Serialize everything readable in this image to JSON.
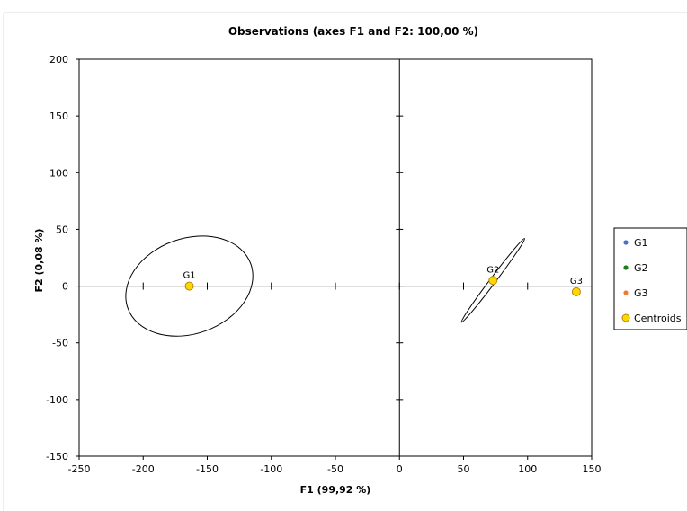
{
  "chart_data": {
    "type": "scatter",
    "title": "Observations (axes F1 and F2: 100,00 %)",
    "xlabel": "F1 (99,92 %)",
    "ylabel": "F2 (0,08 %)",
    "xlim": [
      -250,
      150
    ],
    "ylim": [
      -150,
      200
    ],
    "xticks": [
      -250,
      -200,
      -150,
      -100,
      -50,
      0,
      50,
      100,
      150
    ],
    "yticks": [
      -150,
      -100,
      -50,
      0,
      50,
      100,
      150,
      200
    ],
    "grid": false,
    "legend_position": "right",
    "series": [
      {
        "name": "G1",
        "color": "#4472c4",
        "points": []
      },
      {
        "name": "G2",
        "color": "#1e7b1e",
        "points": []
      },
      {
        "name": "G3",
        "color": "#ed7d31",
        "points": []
      },
      {
        "name": "Centroids",
        "color": "#ffd700",
        "points": [
          {
            "label": "G1",
            "x": -164,
            "y": 0
          },
          {
            "label": "G2",
            "x": 73,
            "y": 5
          },
          {
            "label": "G3",
            "x": 138,
            "y": -5
          }
        ]
      }
    ],
    "ellipses": [
      {
        "group": "G1",
        "cx": -164,
        "cy": 0,
        "rx": 51,
        "ry": 42,
        "rotation_deg": 20
      },
      {
        "group": "G2",
        "cx": 73,
        "cy": 5,
        "rx": 41,
        "ry": 2.5,
        "rotation_deg": 53
      }
    ]
  }
}
